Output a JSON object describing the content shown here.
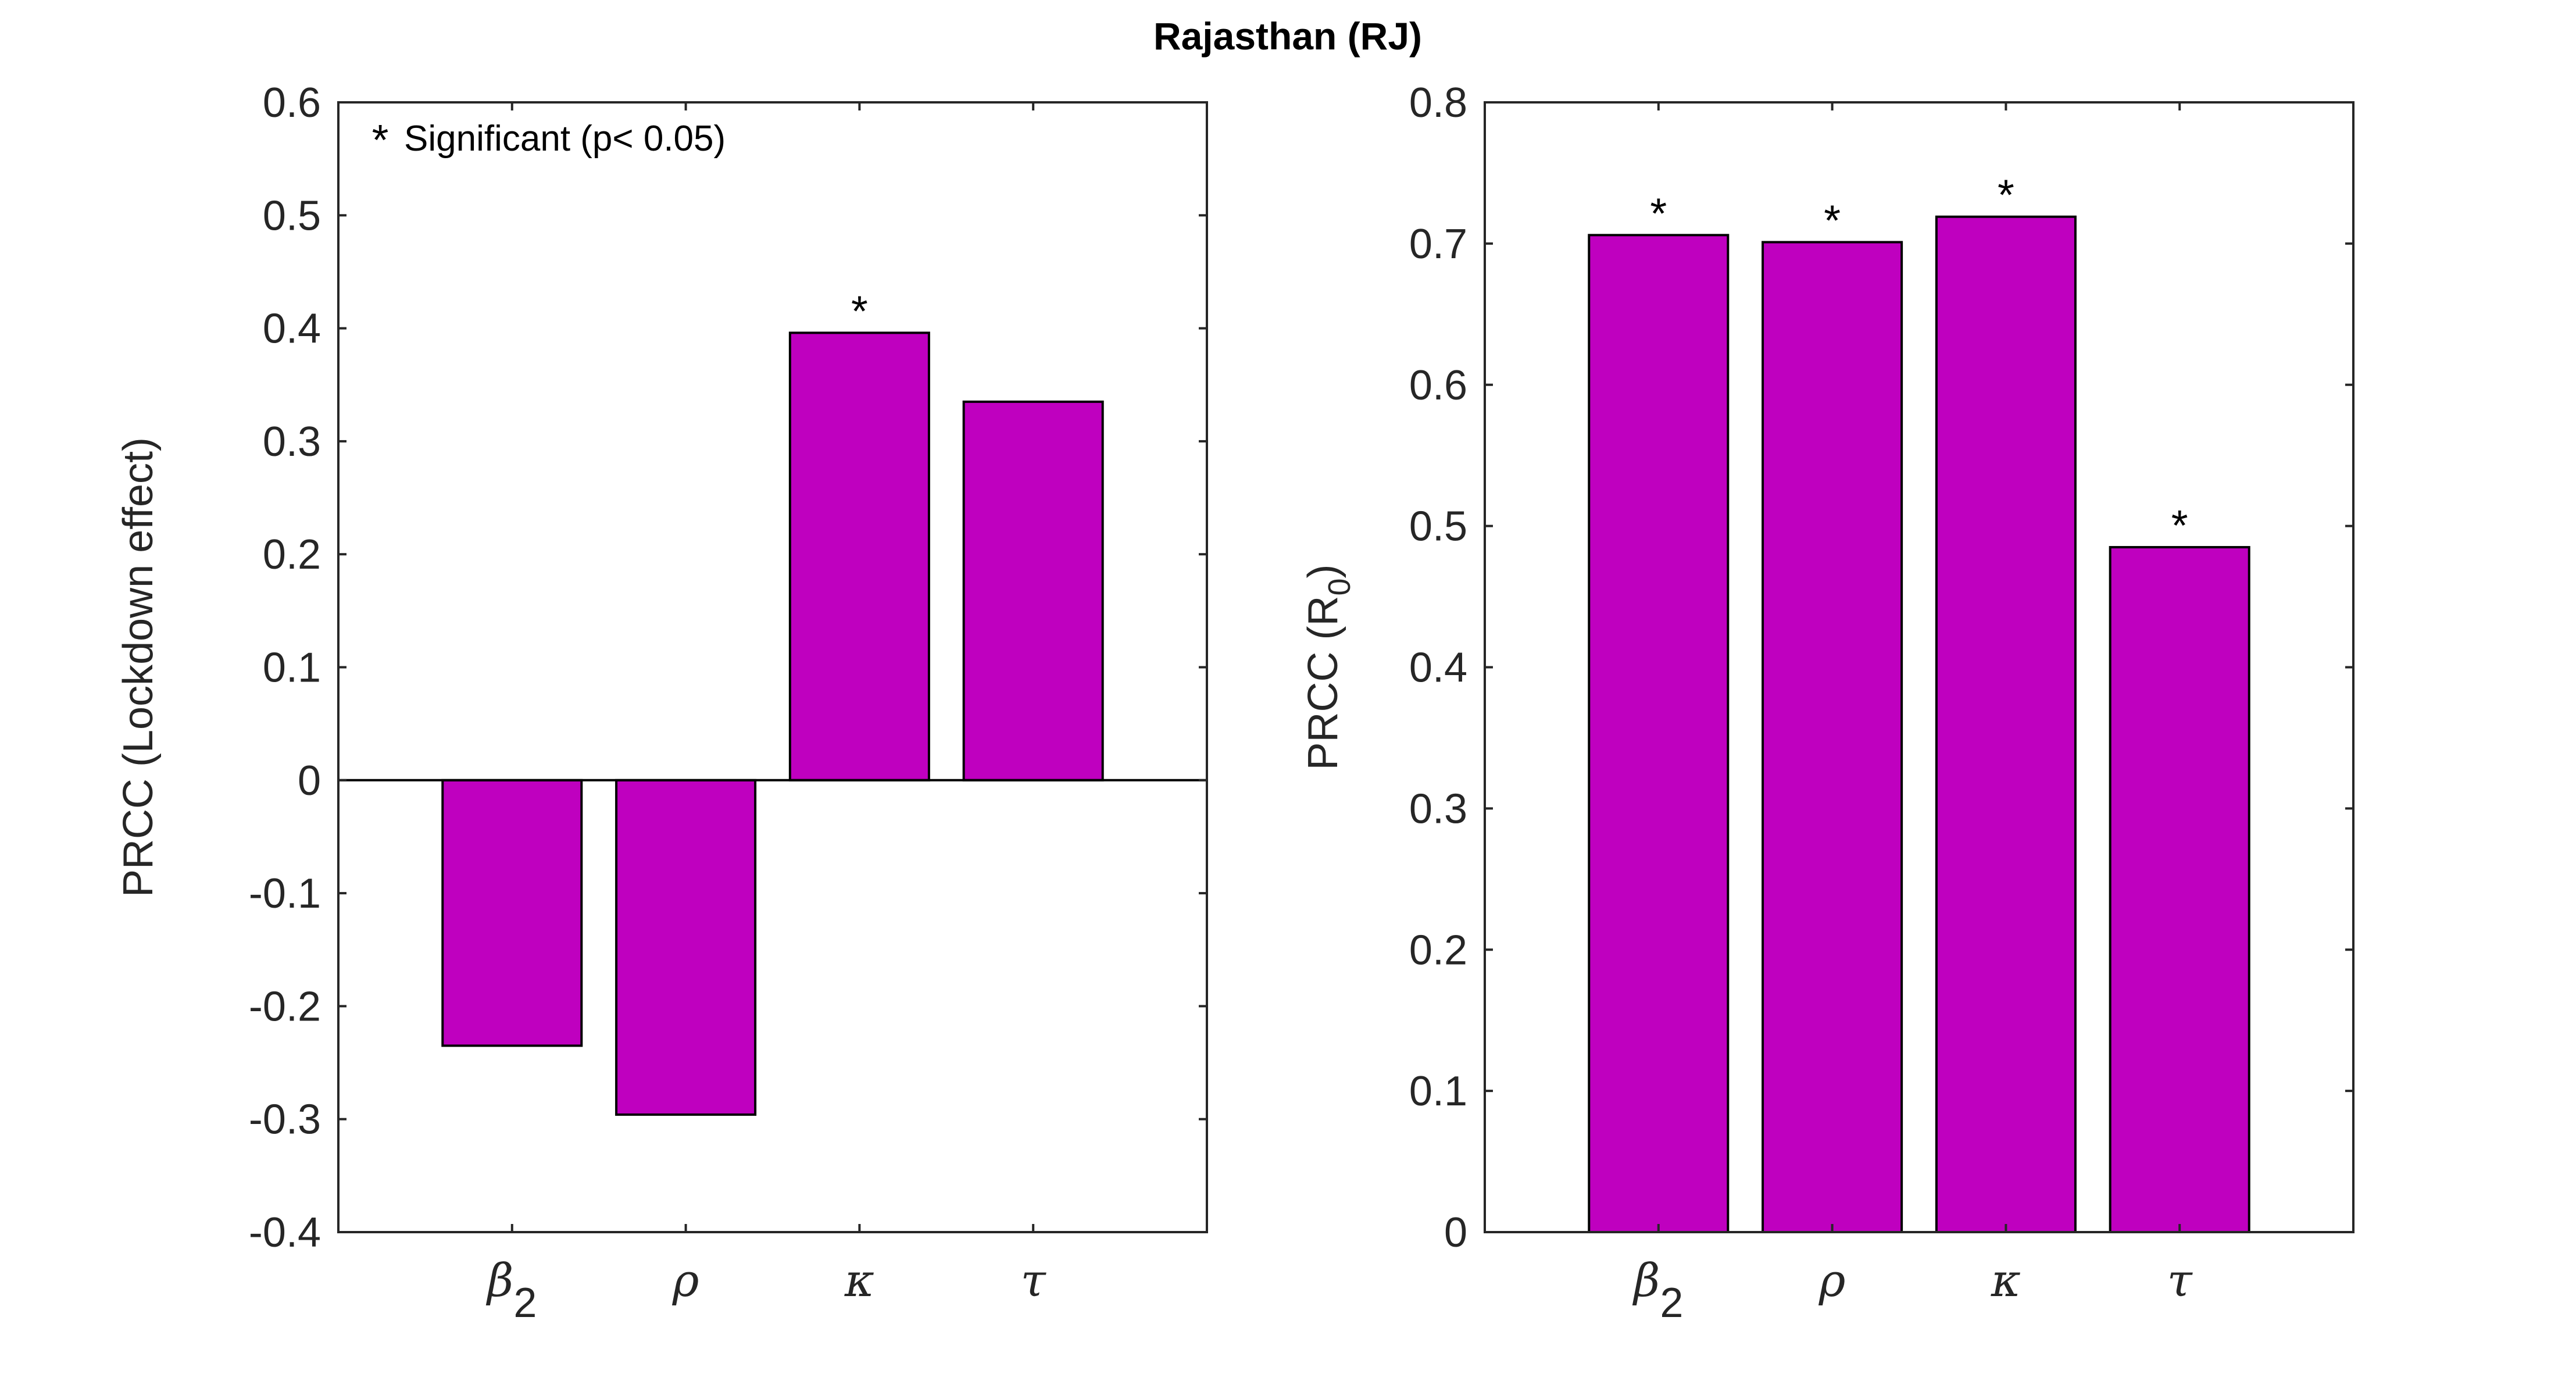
{
  "title": "Rajasthan (RJ)",
  "colors": {
    "bar": "#BF00BF",
    "edge": "#000000",
    "axis": "#262626"
  },
  "significance_marker": "*",
  "chart_data": [
    {
      "type": "bar",
      "categories": [
        "β2",
        "ρ",
        "κ",
        "τ"
      ],
      "category_display": [
        {
          "base": "β",
          "sub": "2"
        },
        {
          "base": "ρ",
          "sub": ""
        },
        {
          "base": "κ",
          "sub": ""
        },
        {
          "base": "τ",
          "sub": ""
        }
      ],
      "values": [
        -0.235,
        -0.296,
        0.396,
        0.335
      ],
      "significant": [
        false,
        false,
        true,
        false
      ],
      "ylabel": "PRCC (Lockdown effect)",
      "ylabel_sub": "",
      "ylabel_suffix": "",
      "ylim": [
        -0.4,
        0.6
      ],
      "yticks": [
        -0.4,
        -0.3,
        -0.2,
        -0.1,
        0,
        0.1,
        0.2,
        0.3,
        0.4,
        0.5,
        0.6
      ],
      "ytick_labels": [
        "-0.4",
        "-0.3",
        "-0.2",
        "-0.1",
        "0",
        "0.1",
        "0.2",
        "0.3",
        "0.4",
        "0.5",
        "0.6"
      ],
      "legend": "Significant (p< 0.05)",
      "legend_location": "top-left"
    },
    {
      "type": "bar",
      "categories": [
        "β2",
        "ρ",
        "κ",
        "τ"
      ],
      "category_display": [
        {
          "base": "β",
          "sub": "2"
        },
        {
          "base": "ρ",
          "sub": ""
        },
        {
          "base": "κ",
          "sub": ""
        },
        {
          "base": "τ",
          "sub": ""
        }
      ],
      "values": [
        0.706,
        0.701,
        0.719,
        0.485
      ],
      "significant": [
        true,
        true,
        true,
        true
      ],
      "ylabel": "PRCC (R",
      "ylabel_sub": "0",
      "ylabel_suffix": ")",
      "ylim": [
        0,
        0.8
      ],
      "yticks": [
        0,
        0.1,
        0.2,
        0.3,
        0.4,
        0.5,
        0.6,
        0.7,
        0.8
      ],
      "ytick_labels": [
        "0",
        "0.1",
        "0.2",
        "0.3",
        "0.4",
        "0.5",
        "0.6",
        "0.7",
        "0.8"
      ],
      "legend": "",
      "legend_location": ""
    }
  ]
}
